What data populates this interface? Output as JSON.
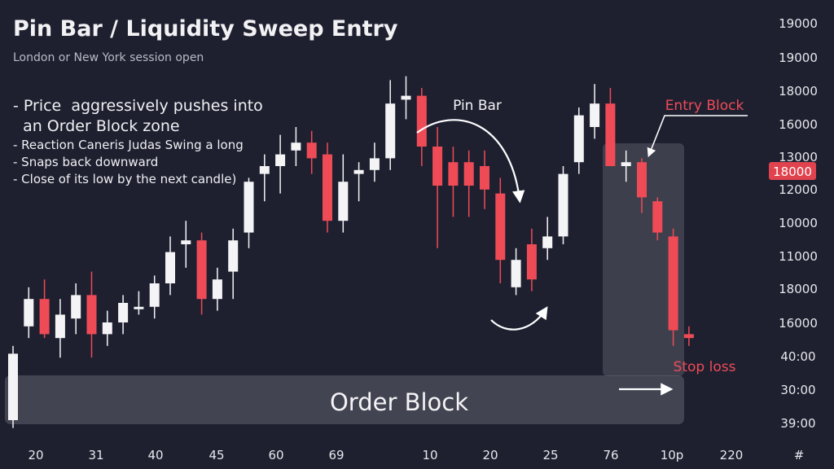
{
  "colors": {
    "background": "#1e2030",
    "bullish": "#f4f4f6",
    "bearish": "#ef4b57",
    "zone": "#6a6c78",
    "annotation": "#ffffff",
    "axis_text": "#e8e8ec",
    "price_tag": "#e0424e"
  },
  "header": {
    "title": "Pin Bar / Liquidity Sweep Entry",
    "subtitle": "London or New York session open"
  },
  "notes": [
    "- Price  aggressively pushes into",
    "  an Order Block zone",
    "- Reaction Caneris Judas Swing a long",
    "- Snaps back downward",
    "- Close of its low by the next candle)"
  ],
  "annotations": {
    "pin_bar": "Pin Bar",
    "entry_block": "Entry Block",
    "stop_loss": "Stop loss",
    "order_block": "Order Block"
  },
  "chart_data": {
    "type": "candlestick",
    "title": "Pin Bar / Liquidity Sweep Entry",
    "subtitle": "London or New York session open",
    "x_tick_labels": [
      "20",
      "31",
      "40",
      "45",
      "60",
      "69",
      "10",
      "20",
      "25",
      "76",
      "10p",
      "220",
      "#"
    ],
    "y_tick_labels": [
      "19000",
      "19000",
      "18000",
      "16000",
      "13000",
      "12000",
      "10000",
      "11000",
      "18000",
      "16000",
      "40:00",
      "30:00",
      "39:00"
    ],
    "current_price_label": "18000",
    "price_units": "relative level (0 = bottom of plot, 100 = top of plot)",
    "candles": [
      {
        "o": 5,
        "h": 24,
        "l": 3,
        "c": 22
      },
      {
        "o": 29,
        "h": 39,
        "l": 26,
        "c": 36
      },
      {
        "o": 36,
        "h": 41,
        "l": 26,
        "c": 27
      },
      {
        "o": 26,
        "h": 36,
        "l": 21,
        "c": 32
      },
      {
        "o": 31,
        "h": 40,
        "l": 27,
        "c": 37
      },
      {
        "o": 37,
        "h": 43,
        "l": 21,
        "c": 27
      },
      {
        "o": 27,
        "h": 33,
        "l": 24,
        "c": 30
      },
      {
        "o": 30,
        "h": 37,
        "l": 27,
        "c": 35
      },
      {
        "o": 34,
        "h": 38,
        "l": 32,
        "c": 34
      },
      {
        "o": 34,
        "h": 42,
        "l": 31,
        "c": 40
      },
      {
        "o": 40,
        "h": 52,
        "l": 37,
        "c": 48
      },
      {
        "o": 50,
        "h": 56,
        "l": 44,
        "c": 51
      },
      {
        "o": 51,
        "h": 53,
        "l": 32,
        "c": 36
      },
      {
        "o": 36,
        "h": 44,
        "l": 33,
        "c": 41
      },
      {
        "o": 43,
        "h": 54,
        "l": 36,
        "c": 51
      },
      {
        "o": 53,
        "h": 67,
        "l": 49,
        "c": 66
      },
      {
        "o": 68,
        "h": 73,
        "l": 61,
        "c": 70
      },
      {
        "o": 70,
        "h": 78,
        "l": 63,
        "c": 73
      },
      {
        "o": 74,
        "h": 80,
        "l": 70,
        "c": 76
      },
      {
        "o": 76,
        "h": 79,
        "l": 68,
        "c": 72
      },
      {
        "o": 73,
        "h": 76,
        "l": 53,
        "c": 56
      },
      {
        "o": 56,
        "h": 73,
        "l": 53,
        "c": 66
      },
      {
        "o": 68,
        "h": 71,
        "l": 61,
        "c": 69
      },
      {
        "o": 69,
        "h": 76,
        "l": 66,
        "c": 72
      },
      {
        "o": 72,
        "h": 92,
        "l": 69,
        "c": 86
      },
      {
        "o": 87,
        "h": 93,
        "l": 82,
        "c": 88
      },
      {
        "o": 88,
        "h": 90,
        "l": 70,
        "c": 75
      },
      {
        "o": 75,
        "h": 80,
        "l": 49,
        "c": 65
      },
      {
        "o": 71,
        "h": 75,
        "l": 57,
        "c": 65
      },
      {
        "o": 71,
        "h": 74,
        "l": 57,
        "c": 65
      },
      {
        "o": 70,
        "h": 74,
        "l": 59,
        "c": 64
      },
      {
        "o": 63,
        "h": 67,
        "l": 40,
        "c": 46
      },
      {
        "o": 39,
        "h": 49,
        "l": 37,
        "c": 46
      },
      {
        "o": 50,
        "h": 54,
        "l": 38,
        "c": 41
      },
      {
        "o": 49,
        "h": 57,
        "l": 46,
        "c": 52
      },
      {
        "o": 52,
        "h": 70,
        "l": 50,
        "c": 68
      },
      {
        "o": 71,
        "h": 85,
        "l": 68,
        "c": 83
      },
      {
        "o": 80,
        "h": 91,
        "l": 77,
        "c": 86
      },
      {
        "o": 86,
        "h": 90,
        "l": 70,
        "c": 70
      },
      {
        "o": 70,
        "h": 74,
        "l": 66,
        "c": 71
      },
      {
        "o": 71,
        "h": 72,
        "l": 58,
        "c": 62
      },
      {
        "o": 61,
        "h": 62,
        "l": 51,
        "c": 53
      },
      {
        "o": 52,
        "h": 54,
        "l": 24,
        "c": 28
      },
      {
        "o": 27,
        "h": 29,
        "l": 24,
        "c": 26
      }
    ]
  }
}
